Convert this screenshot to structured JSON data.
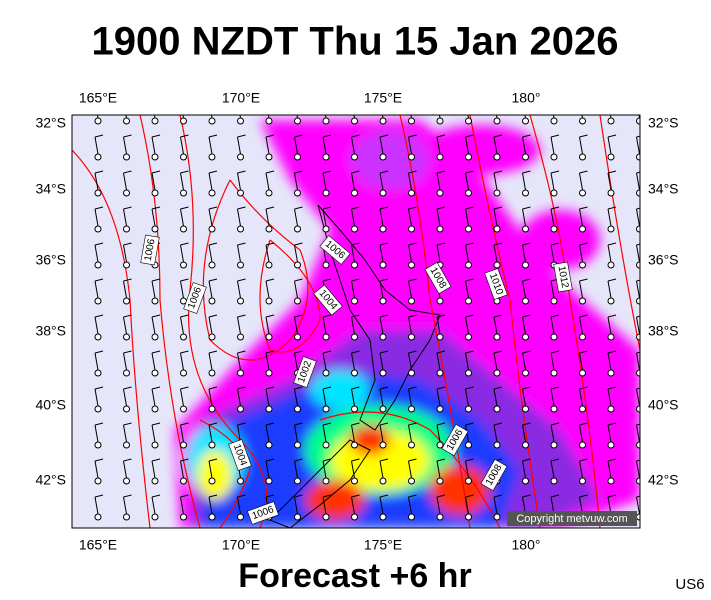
{
  "header": {
    "title": "1900 NZDT Thu 15 Jan 2026"
  },
  "map": {
    "lon_labels": [
      "165°E",
      "170°E",
      "175°E",
      "180°"
    ],
    "lat_labels": [
      "32°S",
      "34°S",
      "36°S",
      "38°S",
      "40°S",
      "42°S"
    ],
    "isobar_labels": [
      "1006",
      "1006",
      "1006",
      "1004",
      "1002",
      "1008",
      "1010",
      "1012",
      "1006",
      "1008",
      "1004",
      "1006"
    ],
    "copyright": "Copyright metvuw.com"
  },
  "footer": {
    "caption": "Forecast +6 hr",
    "code": "US6"
  }
}
